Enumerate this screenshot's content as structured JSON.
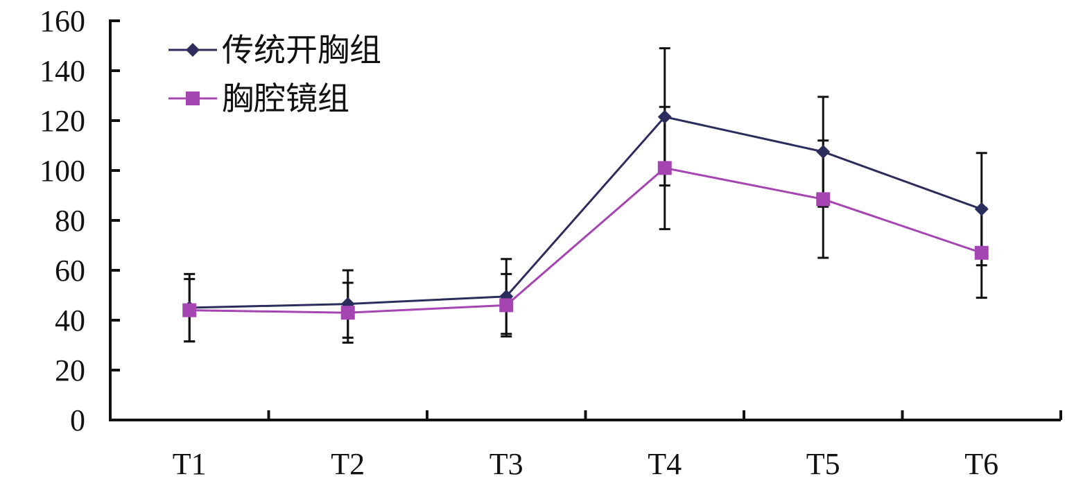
{
  "chart_data": {
    "type": "line",
    "title": "",
    "xlabel": "",
    "ylabel": "",
    "categories": [
      "T1",
      "T2",
      "T3",
      "T4",
      "T5",
      "T6"
    ],
    "ylim": [
      0,
      160
    ],
    "yticks": [
      0,
      20,
      40,
      60,
      80,
      100,
      120,
      140,
      160
    ],
    "grid": false,
    "legend_position": "top-left",
    "series": [
      {
        "name": "传统开胸组",
        "marker": "diamond",
        "color": "#2b2d5c",
        "values": [
          45,
          46.5,
          49.5,
          121.5,
          107.5,
          84.5
        ],
        "error": [
          13.5,
          13.5,
          15,
          27.5,
          22,
          22.5
        ]
      },
      {
        "name": "胸腔镜组",
        "marker": "square",
        "color": "#a445b2",
        "values": [
          44,
          43,
          46,
          101,
          88.5,
          67
        ],
        "error": [
          12.5,
          12,
          12.5,
          24.5,
          23.5,
          18
        ]
      }
    ]
  }
}
